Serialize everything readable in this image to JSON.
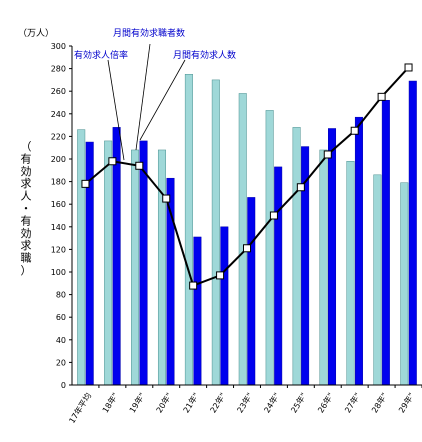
{
  "chart_data": {
    "type": "bar",
    "y_unit": "（万人）",
    "ylabel": "（有効求人・有効求職）",
    "ylim": [
      0,
      300
    ],
    "y_step": 20,
    "categories": [
      "17年平均",
      "18年\"",
      "19年\"",
      "20年\"",
      "21年\"",
      "22年\"",
      "23年\"",
      "24年\"",
      "25年\"",
      "26年\"",
      "27年\"",
      "28年\"",
      "29年\""
    ],
    "series": [
      {
        "name": "月間有効求職者数",
        "kind": "bar",
        "color": "#9fd8d8",
        "values": [
          226,
          216,
          208,
          208,
          275,
          270,
          258,
          243,
          228,
          208,
          198,
          186,
          179
        ]
      },
      {
        "name": "月間有効求人数",
        "kind": "bar",
        "color": "#0000ee",
        "values": [
          215,
          228,
          216,
          183,
          131,
          140,
          166,
          193,
          211,
          227,
          237,
          252,
          269
        ]
      },
      {
        "name": "有効求人倍率",
        "kind": "line",
        "color": "#000000",
        "values": [
          178,
          198,
          194,
          165,
          88,
          97,
          121,
          150,
          175,
          204,
          225,
          255,
          281
        ]
      }
    ],
    "grid": false,
    "legend": "callouts"
  }
}
